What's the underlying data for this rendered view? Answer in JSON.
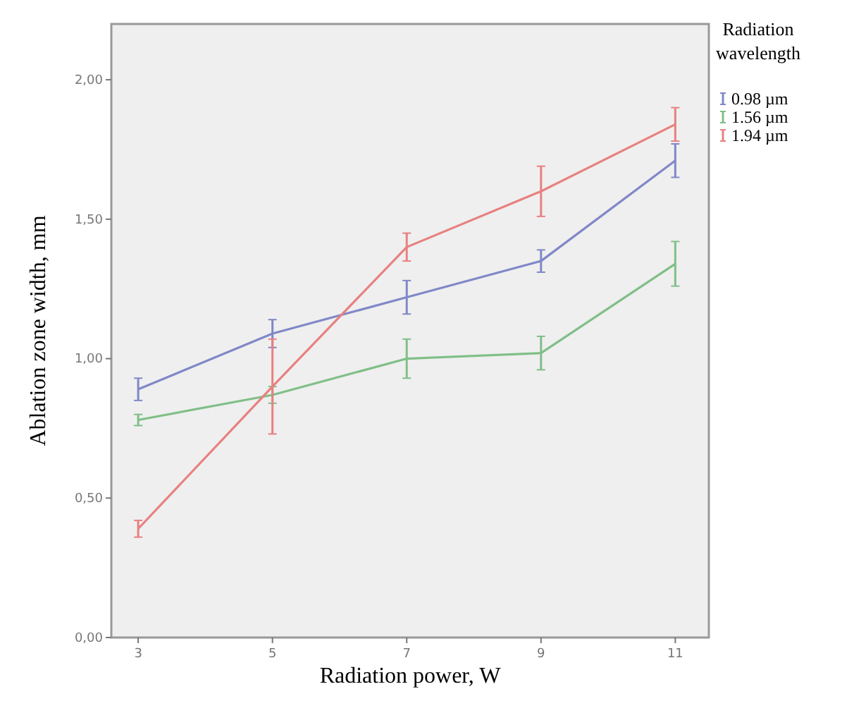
{
  "chart_data": {
    "type": "line",
    "xlabel": "Radiation power, W",
    "ylabel": "Ablation zone width, mm",
    "legend_title": "Radiation wavelength",
    "x": [
      3,
      5,
      7,
      9,
      11
    ],
    "xlim": [
      2.6,
      11.5
    ],
    "xticks": [
      3,
      5,
      7,
      9,
      11
    ],
    "ylim": [
      0,
      2.2
    ],
    "yticks": [
      {
        "value": 0,
        "label": "0,00"
      },
      {
        "value": 0.5,
        "label": "0,50"
      },
      {
        "value": 1,
        "label": "1,00"
      },
      {
        "value": 1.5,
        "label": "1,50"
      },
      {
        "value": 2,
        "label": "2,00"
      }
    ],
    "grid": false,
    "legend": "right",
    "marker": "none",
    "line_style": "solid",
    "series": [
      {
        "name": "0.98 µm",
        "color": "#8088c8",
        "values": [
          0.89,
          1.09,
          1.22,
          1.35,
          1.71
        ],
        "errors": [
          0.04,
          0.05,
          0.06,
          0.04,
          0.06
        ]
      },
      {
        "name": "1.56 µm",
        "color": "#80bf88",
        "values": [
          0.78,
          0.87,
          1.0,
          1.02,
          1.34
        ],
        "errors": [
          0.02,
          0.03,
          0.07,
          0.06,
          0.08
        ]
      },
      {
        "name": "1.94 µm",
        "color": "#e88080",
        "values": [
          0.39,
          0.9,
          1.4,
          1.6,
          1.84
        ],
        "errors": [
          0.03,
          0.17,
          0.05,
          0.09,
          0.06
        ]
      }
    ]
  }
}
